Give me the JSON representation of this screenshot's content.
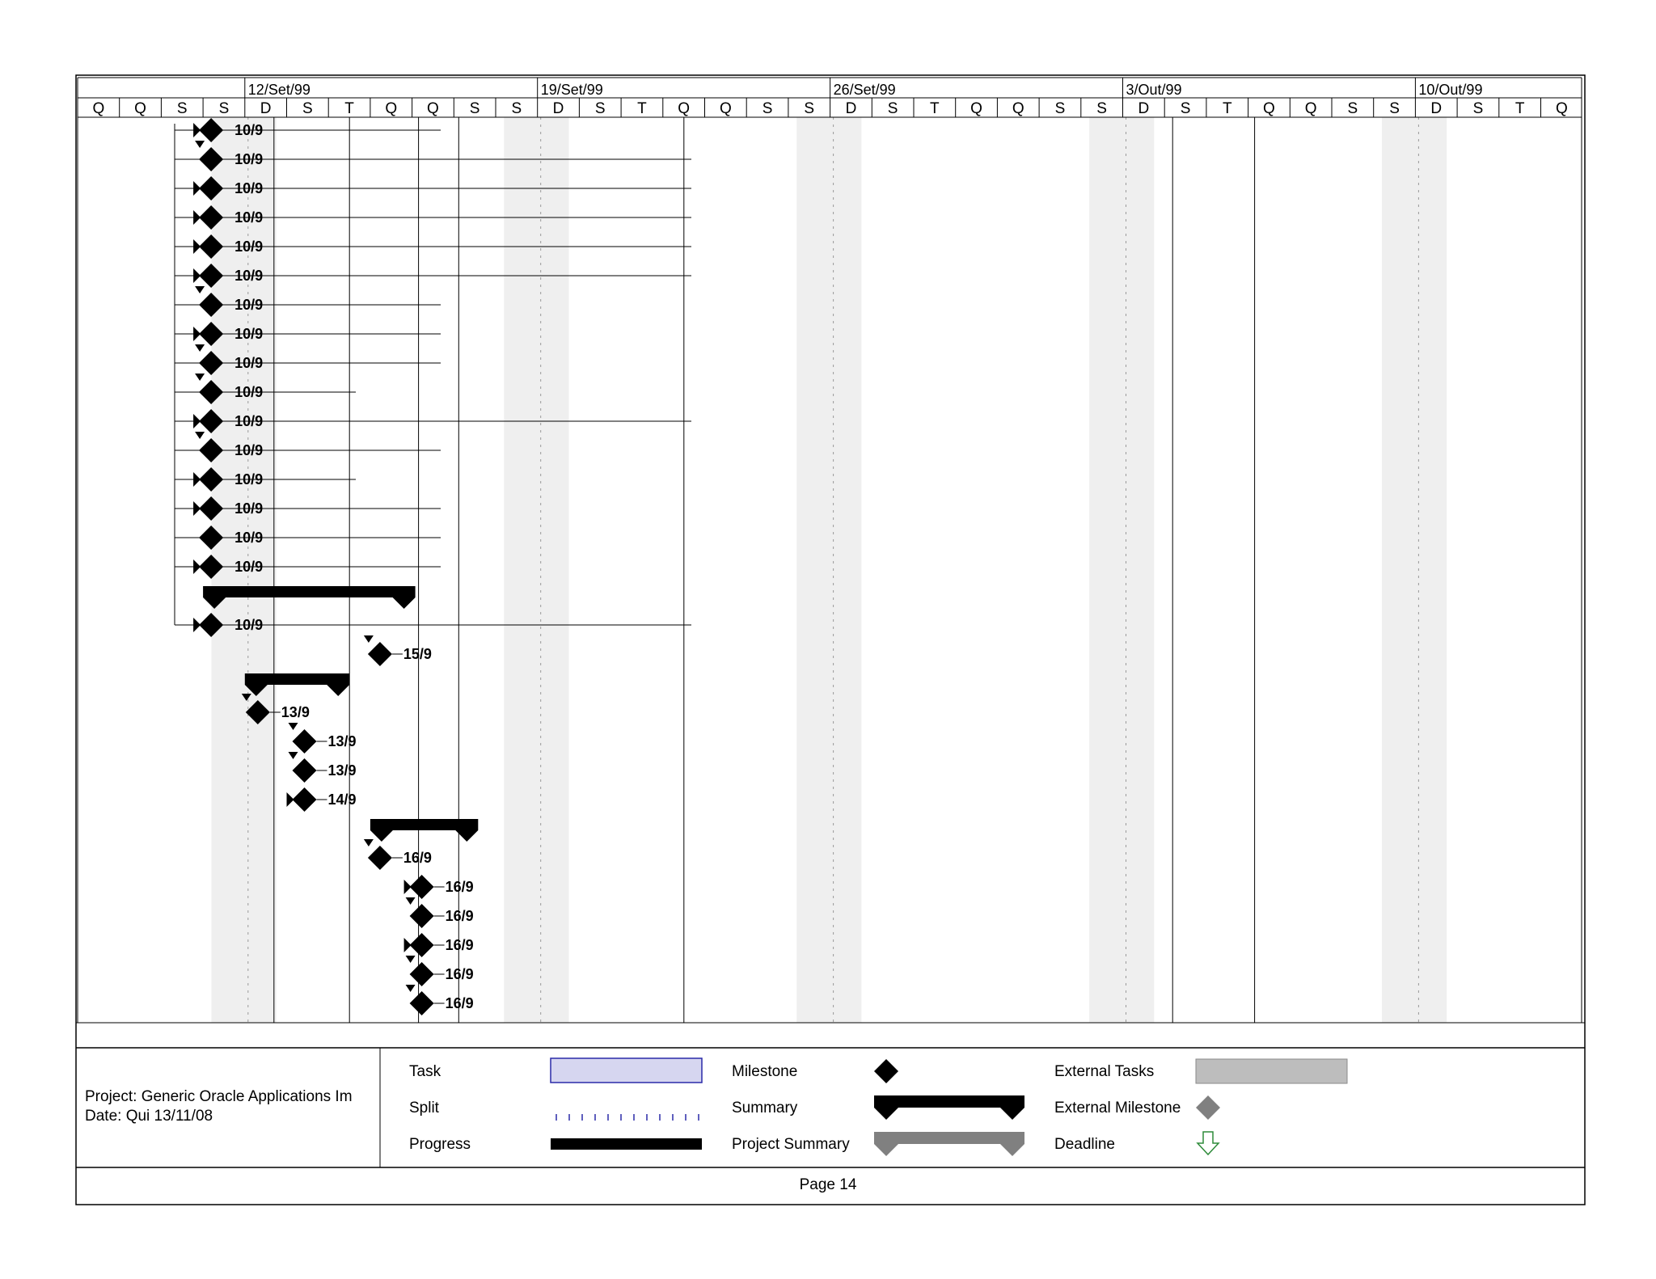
{
  "timescale": {
    "weeks": [
      "12/Set/99",
      "19/Set/99",
      "26/Set/99",
      "3/Out/99",
      "10/Out/99"
    ],
    "days": [
      "Q",
      "Q",
      "S",
      "S",
      "D",
      "S",
      "T",
      "Q",
      "Q",
      "S",
      "S",
      "D",
      "S",
      "T",
      "Q",
      "Q",
      "S",
      "S",
      "D",
      "S",
      "T",
      "Q",
      "Q",
      "S",
      "S",
      "D",
      "S",
      "T",
      "Q",
      "Q",
      "S",
      "S",
      "D",
      "S",
      "T",
      "Q"
    ]
  },
  "milestones": [
    {
      "label": "10/9",
      "connector": "left-arrow",
      "row": 0
    },
    {
      "label": "10/9",
      "connector": "down-arrow",
      "row": 1
    },
    {
      "label": "10/9",
      "connector": "left-arrow",
      "row": 2
    },
    {
      "label": "10/9",
      "connector": "left-arrow",
      "row": 3
    },
    {
      "label": "10/9",
      "connector": "left-arrow",
      "row": 4
    },
    {
      "label": "10/9",
      "connector": "left-arrow",
      "row": 5
    },
    {
      "label": "10/9",
      "connector": "down-arrow",
      "row": 6
    },
    {
      "label": "10/9",
      "connector": "left-arrow",
      "row": 7
    },
    {
      "label": "10/9",
      "connector": "down-arrow",
      "row": 8
    },
    {
      "label": "10/9",
      "connector": "down-arrow",
      "row": 9
    },
    {
      "label": "10/9",
      "connector": "left-arrow",
      "row": 10
    },
    {
      "label": "10/9",
      "connector": "down-arrow",
      "row": 11
    },
    {
      "label": "10/9",
      "connector": "left-arrow",
      "row": 12
    },
    {
      "label": "10/9",
      "connector": "left-arrow",
      "row": 13
    },
    {
      "label": "10/9",
      "connector": "none",
      "row": 14
    },
    {
      "label": "10/9",
      "connector": "left-arrow",
      "row": 15
    },
    {
      "label": "10/9",
      "connector": "left-arrow",
      "row": 17
    },
    {
      "label": "15/9",
      "connector": "down-arrow",
      "row": 18
    },
    {
      "label": "13/9",
      "connector": "down-arrow",
      "row": 20
    },
    {
      "label": "13/9",
      "connector": "down-arrow",
      "row": 21
    },
    {
      "label": "13/9",
      "connector": "down-arrow",
      "row": 22
    },
    {
      "label": "14/9",
      "connector": "left-arrow",
      "row": 23
    },
    {
      "label": "16/9",
      "connector": "down-arrow",
      "row": 25
    },
    {
      "label": "16/9",
      "connector": "left-arrow",
      "row": 26
    },
    {
      "label": "16/9",
      "connector": "down-arrow",
      "row": 27
    },
    {
      "label": "16/9",
      "connector": "left-arrow",
      "row": 28
    },
    {
      "label": "16/9",
      "connector": "down-arrow",
      "row": 29
    },
    {
      "label": "16/9",
      "connector": "down-arrow",
      "row": 30
    }
  ],
  "summaries": [
    {
      "name": "summary-bar-1",
      "row": 16
    },
    {
      "name": "summary-bar-2",
      "row": 19
    },
    {
      "name": "summary-bar-3",
      "row": 24
    }
  ],
  "footer": {
    "project": "Project: Generic Oracle Applications Im",
    "date": "Date: Qui 13/11/08",
    "page": "Page 14"
  },
  "legend": {
    "task": "Task",
    "split": "Split",
    "progress": "Progress",
    "milestone": "Milestone",
    "summary": "Summary",
    "project_summary": "Project Summary",
    "external_tasks": "External Tasks",
    "external_milestone": "External Milestone",
    "deadline": "Deadline"
  },
  "colors": {
    "weekend_shade": "#efefef",
    "task_fill": "#d6d6f0",
    "task_border": "#2a2aa8",
    "project_summary": "#808080",
    "external": "#bdbdbd",
    "deadline": "#2e8b3a"
  }
}
